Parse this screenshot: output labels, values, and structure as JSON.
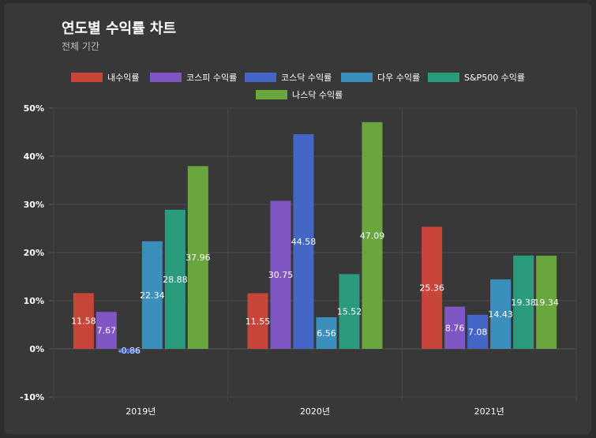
{
  "header": {
    "title": "연도별 수익률 차트",
    "subtitle": "전체 기간"
  },
  "chart_data": {
    "type": "bar",
    "categories": [
      "2019년",
      "2020년",
      "2021년"
    ],
    "series": [
      {
        "name": "내수익률",
        "color": "#c8453a",
        "values": [
          11.58,
          11.55,
          25.36
        ]
      },
      {
        "name": "코스피 수익률",
        "color": "#7f56c3",
        "values": [
          7.67,
          30.75,
          8.76
        ]
      },
      {
        "name": "코스닥 수익률",
        "color": "#4466c7",
        "values": [
          -0.86,
          44.58,
          7.08
        ]
      },
      {
        "name": "다우 수익률",
        "color": "#3a8fbc",
        "values": [
          22.34,
          6.56,
          14.43
        ]
      },
      {
        "name": "S&P500 수익률",
        "color": "#2a9b7d",
        "values": [
          28.88,
          15.52,
          19.38
        ]
      },
      {
        "name": "나스닥 수익률",
        "color": "#6aa63e",
        "values": [
          37.96,
          47.09,
          19.34
        ]
      }
    ],
    "y_ticks": [
      "50%",
      "40%",
      "30%",
      "20%",
      "10%",
      "0%",
      "-10%"
    ],
    "ylim": [
      -10,
      50
    ],
    "grid": true,
    "legend_position": "top"
  }
}
